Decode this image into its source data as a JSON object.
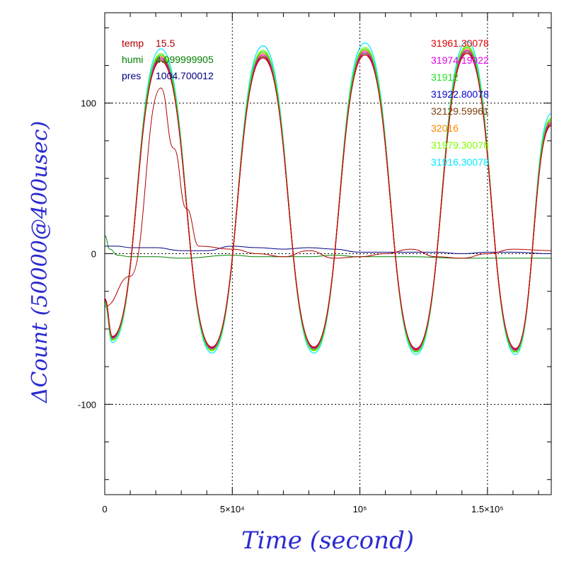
{
  "chart_data": {
    "type": "line",
    "xlabel": "Time (second)",
    "ylabel": "ΔCount (50000@400usec)",
    "xlim": [
      0,
      175000
    ],
    "ylim": [
      -160,
      160
    ],
    "x_ticks": [
      {
        "value": 0,
        "label": "0"
      },
      {
        "value": 50000,
        "label": "5×10⁴"
      },
      {
        "value": 100000,
        "label": "10⁵"
      },
      {
        "value": 150000,
        "label": "1.5×10⁵"
      }
    ],
    "y_ticks": [
      {
        "value": 100,
        "label": "100"
      },
      {
        "value": 0,
        "label": "0"
      },
      {
        "value": -100,
        "label": "-100"
      }
    ],
    "grid": true,
    "legend_left": [
      {
        "label": "temp",
        "value": "15.5",
        "color": "#b00000"
      },
      {
        "label": "humi",
        "value": "4.099999905",
        "color": "#008000"
      },
      {
        "label": "pres",
        "value": "1004.700012",
        "color": "#000080"
      }
    ],
    "legend_right": [
      {
        "label": "31961.30078",
        "color": "#e00000"
      },
      {
        "label": "31974.19922",
        "color": "#e000e0"
      },
      {
        "label": "31912",
        "color": "#20e020"
      },
      {
        "label": "31922.80078",
        "color": "#0000cc"
      },
      {
        "label": "32129.59961",
        "color": "#7a3f10"
      },
      {
        "label": "32016",
        "color": "#ff8800"
      },
      {
        "label": "31979.30078",
        "color": "#80ff00"
      },
      {
        "label": "31916.30078",
        "color": "#00e8ff"
      }
    ],
    "count_series_points": {
      "x": [
        0,
        3000,
        22000,
        42000,
        62000,
        82000,
        102000,
        122000,
        142000,
        161000,
        175000
      ],
      "y": [
        -30,
        -55,
        128,
        -62,
        130,
        -62,
        132,
        -63,
        133,
        -63,
        85
      ]
    },
    "count_series_amplitude_offsets": [
      0,
      2,
      4,
      0,
      1,
      3,
      5,
      8
    ],
    "temp_series": {
      "x": [
        0,
        10000,
        22000,
        27000,
        32000,
        37000,
        50000,
        60000,
        70000,
        80000,
        90000,
        100000,
        110000,
        120000,
        130000,
        140000,
        150000,
        160000,
        175000
      ],
      "y": [
        -35,
        -15,
        110,
        70,
        30,
        5,
        3,
        0,
        -2,
        2,
        -3,
        -2,
        0,
        3,
        -2,
        -3,
        0,
        3,
        2
      ]
    },
    "humi_series": {
      "x": [
        0,
        2000,
        5000,
        10000,
        20000,
        30000,
        50000,
        60000,
        70000,
        80000,
        90000,
        100000,
        120000,
        140000,
        160000,
        175000
      ],
      "y": [
        12,
        3,
        -1,
        -2,
        -2,
        -3,
        -1,
        -2,
        -2,
        -2,
        -1,
        -2,
        -2,
        -3,
        -3,
        -3
      ]
    },
    "pres_series": {
      "x": [
        0,
        5000,
        10000,
        20000,
        30000,
        40000,
        50000,
        60000,
        70000,
        80000,
        90000,
        100000,
        110000,
        120000,
        130000,
        140000,
        150000,
        160000,
        175000
      ],
      "y": [
        5,
        5,
        4,
        4,
        2,
        2,
        5,
        4,
        3,
        4,
        3,
        1,
        1,
        1,
        1,
        0,
        1,
        1,
        0
      ]
    }
  }
}
